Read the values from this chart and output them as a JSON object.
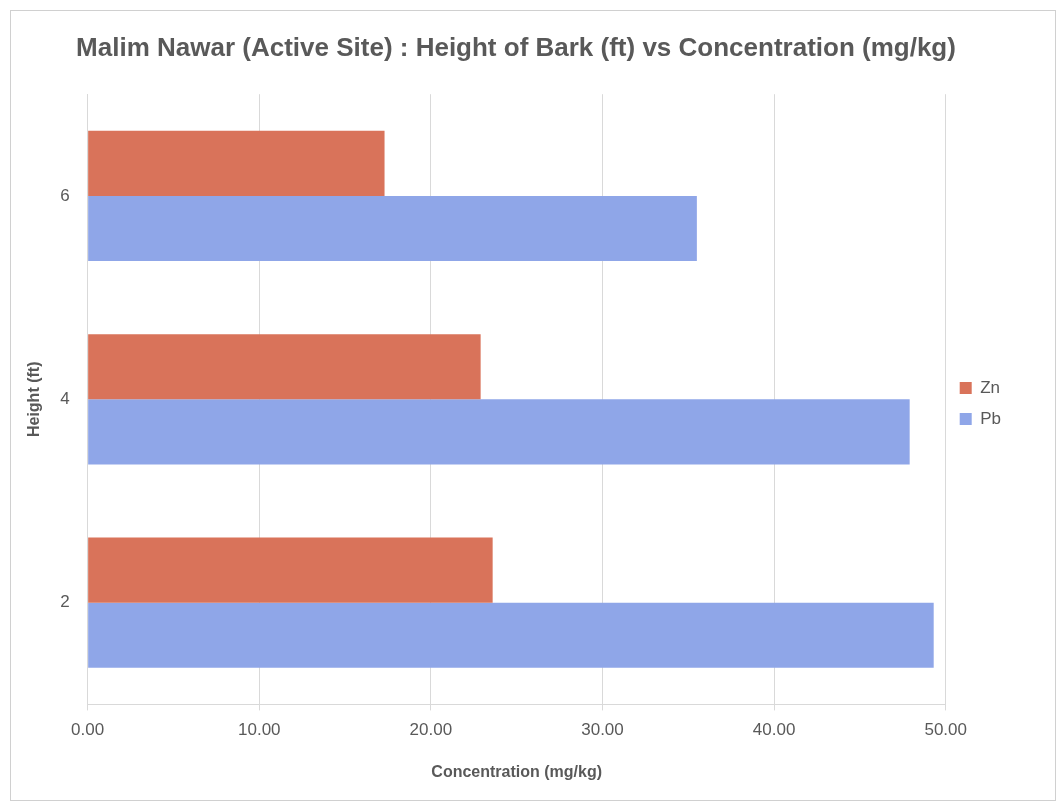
{
  "chart_data": {
    "type": "bar",
    "orientation": "horizontal",
    "title": "Malim Nawar (Active Site) : Height of Bark (ft) vs Concentration (mg/kg)",
    "xlabel": "Concentration (mg/kg)",
    "ylabel": "Height (ft)",
    "categories": [
      "6",
      "4",
      "2"
    ],
    "series": [
      {
        "name": "Zn",
        "color": "#d9735a",
        "values": [
          17.3,
          22.9,
          23.6
        ]
      },
      {
        "name": "Pb",
        "color": "#8fa6e8",
        "values": [
          35.5,
          47.9,
          49.3
        ]
      }
    ],
    "xlim": [
      0,
      50
    ],
    "xticks": [
      {
        "value": 0,
        "label": "0.00"
      },
      {
        "value": 10,
        "label": "10.00"
      },
      {
        "value": 20,
        "label": "20.00"
      },
      {
        "value": 30,
        "label": "30.00"
      },
      {
        "value": 40,
        "label": "40.00"
      },
      {
        "value": 50,
        "label": "50.00"
      }
    ],
    "grid": "x",
    "legend": "right"
  }
}
